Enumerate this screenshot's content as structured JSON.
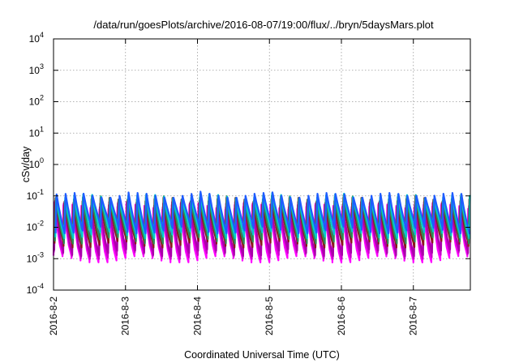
{
  "chart_data": {
    "type": "line",
    "title": "/data/run/goesPlots/archive/2016-08-07/19:00/flux/../bryn/5daysMars.plot",
    "xlabel": "Coordinated Universal Time (UTC)",
    "ylabel": "cSv/day",
    "x_range": [
      "2016-08-02T00:00",
      "2016-08-07T19:00"
    ],
    "x_ticks": [
      "2016-8-2",
      "2016-8-3",
      "2016-8-4",
      "2016-8-5",
      "2016-8-6",
      "2016-8-7"
    ],
    "y_scale": "log",
    "ylim": [
      0.0001,
      10000
    ],
    "y_ticks": [
      {
        "base": "10",
        "exp": "-4",
        "value": 0.0001
      },
      {
        "base": "10",
        "exp": "-3",
        "value": 0.001
      },
      {
        "base": "10",
        "exp": "-2",
        "value": 0.01
      },
      {
        "base": "10",
        "exp": "-1",
        "value": 0.1
      },
      {
        "base": "10",
        "exp": "0",
        "value": 1
      },
      {
        "base": "10",
        "exp": "1",
        "value": 10
      },
      {
        "base": "10",
        "exp": "2",
        "value": 100
      },
      {
        "base": "10",
        "exp": "3",
        "value": 1000
      },
      {
        "base": "10",
        "exp": "4",
        "value": 10000
      }
    ],
    "grid": true,
    "legend": "none",
    "cycle_hours": 3,
    "series": [
      {
        "color": "#ff00ff",
        "peak": 0.045,
        "trough": 0.001
      },
      {
        "color": "#cc00cc",
        "peak": 0.05,
        "trough": 0.0013
      },
      {
        "color": "#aa00aa",
        "peak": 0.055,
        "trough": 0.0016
      },
      {
        "color": "#8b1a1a",
        "peak": 0.075,
        "trough": 0.003
      },
      {
        "color": "#2e8b57",
        "peak": 0.085,
        "trough": 0.004
      },
      {
        "color": "#00cccc",
        "peak": 0.095,
        "trough": 0.006
      },
      {
        "color": "#1e5cff",
        "peak": 0.105,
        "trough": 0.0085
      }
    ]
  }
}
